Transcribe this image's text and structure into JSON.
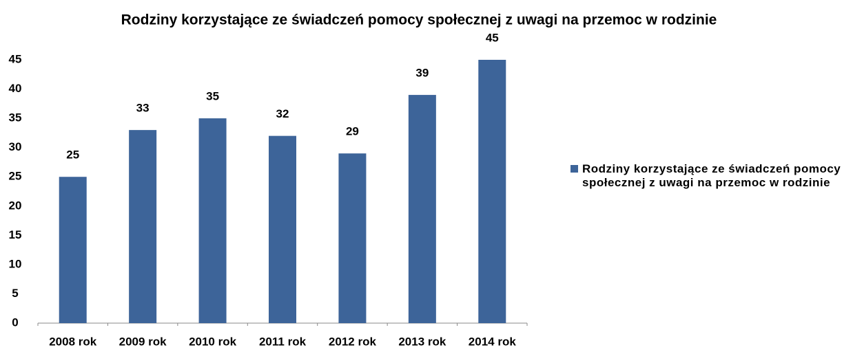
{
  "chart_data": {
    "type": "bar",
    "title": "Rodziny korzystające ze świadczeń pomocy społecznej z uwagi na przemoc w rodzinie",
    "categories": [
      "2008 rok",
      "2009 rok",
      "2010 rok",
      "2011 rok",
      "2012 rok",
      "2013 rok",
      "2014 rok"
    ],
    "series": [
      {
        "name": "Rodziny korzystające ze świadczeń pomocy społecznej z uwagi na przemoc w rodzinie",
        "color": "#3d6499",
        "values": [
          25,
          33,
          35,
          32,
          29,
          39,
          45
        ]
      }
    ],
    "ylim": [
      0,
      45
    ],
    "yticks": [
      0,
      5,
      10,
      15,
      20,
      25,
      30,
      35,
      40,
      45
    ],
    "grid": false,
    "legend": "right"
  }
}
